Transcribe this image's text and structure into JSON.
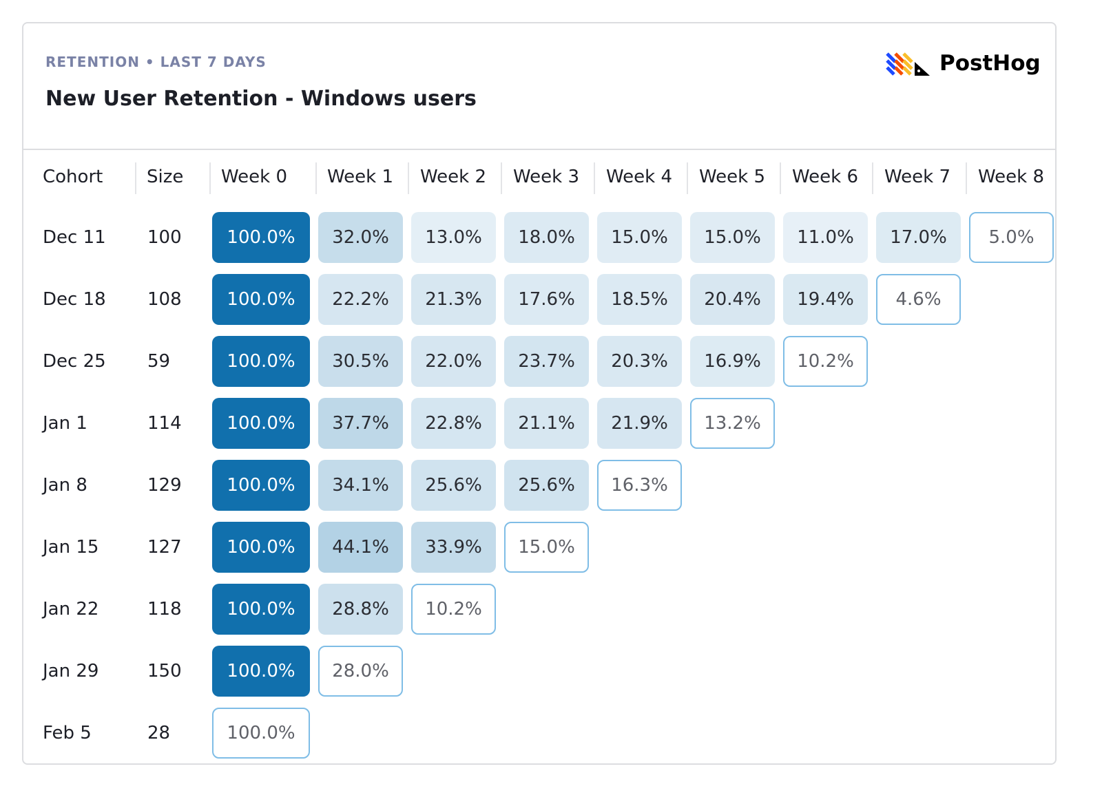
{
  "header": {
    "subtitle": "RETENTION • LAST 7 DAYS",
    "title": "New User Retention - Windows users",
    "logo_text": "PostHog"
  },
  "colors": {
    "accent": "#1170ad",
    "border_last": "#7fbde6"
  },
  "chart_data": {
    "type": "heatmap",
    "columns": [
      "Cohort",
      "Size",
      "Week 0",
      "Week 1",
      "Week 2",
      "Week 3",
      "Week 4",
      "Week 5",
      "Week 6",
      "Week 7",
      "Week 8"
    ],
    "rows": [
      {
        "cohort": "Dec 11",
        "size": "100",
        "values": [
          "100.0%",
          "32.0%",
          "13.0%",
          "18.0%",
          "15.0%",
          "15.0%",
          "11.0%",
          "17.0%",
          "5.0%"
        ]
      },
      {
        "cohort": "Dec 18",
        "size": "108",
        "values": [
          "100.0%",
          "22.2%",
          "21.3%",
          "17.6%",
          "18.5%",
          "20.4%",
          "19.4%",
          "4.6%"
        ]
      },
      {
        "cohort": "Dec 25",
        "size": "59",
        "values": [
          "100.0%",
          "30.5%",
          "22.0%",
          "23.7%",
          "20.3%",
          "16.9%",
          "10.2%"
        ]
      },
      {
        "cohort": "Jan 1",
        "size": "114",
        "values": [
          "100.0%",
          "37.7%",
          "22.8%",
          "21.1%",
          "21.9%",
          "13.2%"
        ]
      },
      {
        "cohort": "Jan 8",
        "size": "129",
        "values": [
          "100.0%",
          "34.1%",
          "25.6%",
          "25.6%",
          "16.3%"
        ]
      },
      {
        "cohort": "Jan 15",
        "size": "127",
        "values": [
          "100.0%",
          "44.1%",
          "33.9%",
          "15.0%"
        ]
      },
      {
        "cohort": "Jan 22",
        "size": "118",
        "values": [
          "100.0%",
          "28.8%",
          "10.2%"
        ]
      },
      {
        "cohort": "Jan 29",
        "size": "150",
        "values": [
          "100.0%",
          "28.0%"
        ]
      },
      {
        "cohort": "Feb 5",
        "size": "28",
        "values": [
          "100.0%"
        ]
      }
    ]
  }
}
